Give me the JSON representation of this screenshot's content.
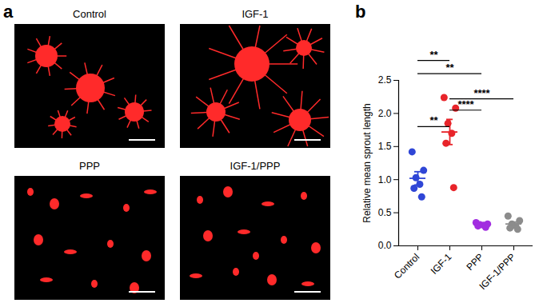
{
  "panel_a": {
    "label": "a",
    "images": [
      "Control",
      "IGF-1",
      "PPP",
      "IGF-1/PPP"
    ]
  },
  "chart_data": {
    "panel_label": "b",
    "type": "scatter",
    "categories": [
      "Control",
      "IGF-1",
      "PPP",
      "IGF-1/PPP"
    ],
    "colors": [
      "#2f46d6",
      "#e8242a",
      "#a22ee0",
      "#8c8c8c"
    ],
    "values": [
      [
        1.42,
        1.14,
        1.03,
        0.93,
        0.87,
        0.74
      ],
      [
        2.24,
        2.08,
        1.85,
        1.7,
        1.55,
        0.88
      ],
      [
        0.35,
        0.33,
        0.32,
        0.31,
        0.3,
        0.28
      ],
      [
        0.45,
        0.38,
        0.33,
        0.3,
        0.27,
        0.25
      ]
    ],
    "mean": [
      1.02,
      1.72,
      0.32,
      0.33
    ],
    "sem": [
      0.1,
      0.19,
      0.01,
      0.03
    ],
    "y_label": "Relative mean sprout length",
    "ylim": [
      0,
      2.5
    ],
    "yticks": [
      {
        "value": 0,
        "label": "0.0"
      },
      {
        "value": 0.5,
        "label": "0.5"
      },
      {
        "value": 1,
        "label": "1.0"
      },
      {
        "value": 1.5,
        "label": "1.5"
      },
      {
        "value": 2,
        "label": "2.0"
      },
      {
        "value": 2.5,
        "label": "2.5"
      }
    ],
    "comparisons": [
      {
        "from": "Control",
        "to": "IGF-1",
        "y": 2.8,
        "label": "**"
      },
      {
        "from": "Control",
        "to": "PPP",
        "y": 2.6,
        "label": "**"
      },
      {
        "from": "Control",
        "to": "IGF-1",
        "y": 1.8,
        "label": "**"
      },
      {
        "from": "IGF-1",
        "to": "IGF-1/PPP",
        "y": 2.22,
        "label": "****"
      },
      {
        "from": "IGF-1",
        "to": "PPP",
        "y": 2.05,
        "label": "****"
      }
    ]
  }
}
